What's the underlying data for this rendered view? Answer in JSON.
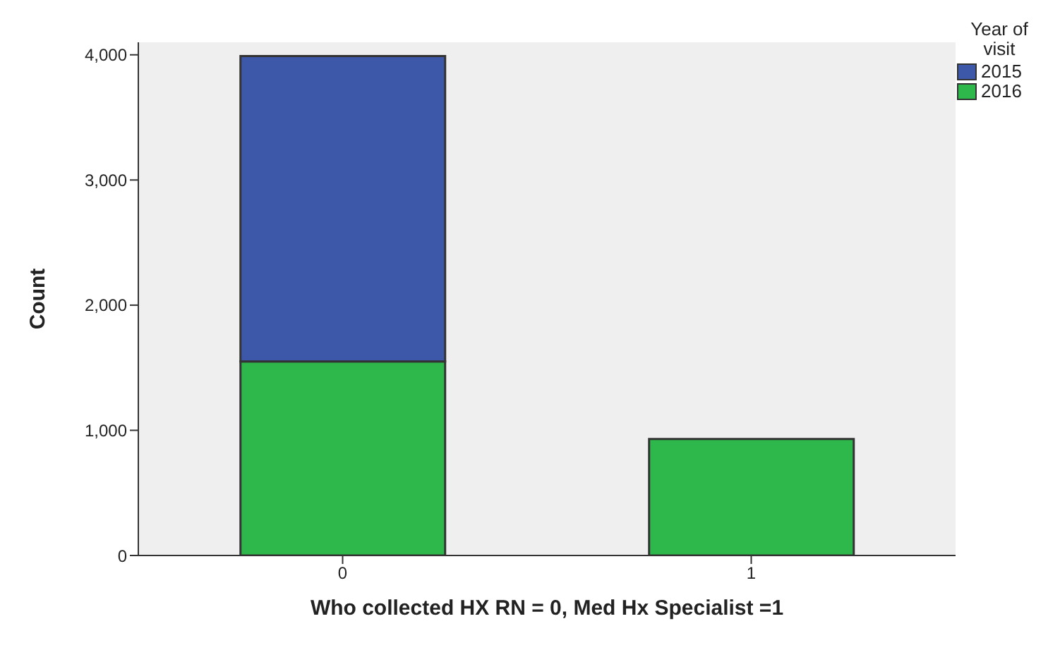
{
  "chart_data": {
    "type": "bar",
    "stacked": true,
    "xlabel": "Who collected HX RN = 0, Med Hx Specialist =1",
    "ylabel": "Count",
    "legend_title": "Year of visit",
    "categories": [
      "0",
      "1"
    ],
    "series": [
      {
        "name": "2016",
        "color": "#2eb74a",
        "values": [
          1550,
          930
        ]
      },
      {
        "name": "2015",
        "color": "#3d58a8",
        "values": [
          2440,
          0
        ]
      }
    ],
    "ylim": [
      0,
      4100
    ],
    "yticks": [
      {
        "value": 0,
        "label": "0"
      },
      {
        "value": 1000,
        "label": "1,000"
      },
      {
        "value": 2000,
        "label": "2,000"
      },
      {
        "value": 3000,
        "label": "3,000"
      },
      {
        "value": 4000,
        "label": "4,000"
      }
    ],
    "legend": "top right"
  }
}
